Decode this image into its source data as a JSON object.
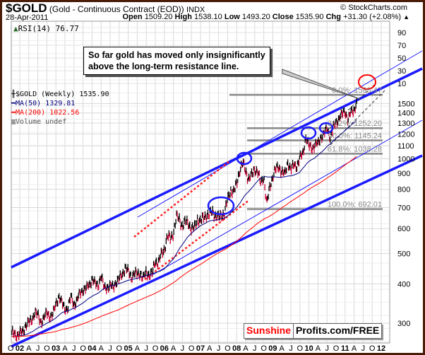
{
  "header": {
    "symbol": "$GOLD",
    "description": "(Gold - Continuous Contract (EOD))",
    "exchange": "INDX",
    "copyright": "© StockCharts.com",
    "date": "28-Apr-2011",
    "open_label": "Open",
    "open": "1509.20",
    "high_label": "High",
    "high": "1538.10",
    "low_label": "Low",
    "low": "1493.20",
    "close_label": "Close",
    "close": "1535.90",
    "chg_label": "Chg",
    "chg": "+31.30 (+2.08%)",
    "chg_arrow": "▲"
  },
  "rsi_label": "RSI(14) 76.77",
  "legend": {
    "price": "$GOLD (Weekly) 1535.90",
    "ma50": "MA(50) 1329.81",
    "ma200": "MA(200) 1022.56",
    "volume": "Volume undef"
  },
  "callout": {
    "line1": "So far gold has moved only insignificantly",
    "line2": "above the long-term resistance line."
  },
  "logo": {
    "part1": "Sunshine",
    "part2": "Profits.com/FREE"
  },
  "colors": {
    "up": "#000000",
    "down": "#cc0033",
    "ma50": "#000080",
    "ma200": "#ff0000",
    "trend": "#1a1aff",
    "fib": "#888888"
  },
  "chart_data": {
    "type": "ohlc-bar",
    "title": "$GOLD (Weekly)",
    "scale": "log",
    "ylim": [
      270,
      1700
    ],
    "y_tick_labels": [
      "300",
      "400",
      "500",
      "600",
      "700",
      "800",
      "900",
      "1000",
      "1100",
      "1200",
      "1300",
      "1400",
      "1500"
    ],
    "rsi_tick_labels": [
      "90",
      "70",
      "50",
      "30",
      "10"
    ],
    "x_tick_labels": [
      "O",
      "02",
      "A",
      "J",
      "O",
      "03",
      "A",
      "J",
      "O",
      "04",
      "A",
      "J",
      "O",
      "05",
      "A",
      "J",
      "O",
      "06",
      "A",
      "J",
      "O",
      "07",
      "A",
      "J",
      "O",
      "08",
      "A",
      "J",
      "O",
      "09",
      "A",
      "J",
      "O",
      "10",
      "A",
      "J",
      "O",
      "11",
      "A",
      "J",
      "O",
      "12"
    ],
    "monthly_start": "2001-10",
    "monthly_closes": [
      279,
      275,
      279,
      282,
      297,
      301,
      308,
      326,
      318,
      304,
      312,
      324,
      317,
      319,
      347,
      367,
      347,
      334,
      336,
      364,
      346,
      354,
      375,
      385,
      386,
      398,
      417,
      400,
      397,
      427,
      388,
      393,
      395,
      391,
      408,
      415,
      429,
      453,
      438,
      422,
      434,
      428,
      435,
      417,
      437,
      429,
      433,
      473,
      470,
      495,
      517,
      569,
      556,
      582,
      654,
      643,
      613,
      632,
      626,
      599,
      604,
      646,
      632,
      650,
      665,
      663,
      683,
      659,
      650,
      665,
      673,
      743,
      795,
      783,
      834,
      923,
      971,
      916,
      865,
      885,
      930,
      914,
      833,
      884,
      718,
      814,
      884,
      928,
      942,
      916,
      891,
      979,
      927,
      955,
      955,
      1008,
      1040,
      1182,
      1096,
      1081,
      1118,
      1113,
      1180,
      1207,
      1244,
      1181,
      1248,
      1307,
      1357,
      1386,
      1421,
      1333,
      1411,
      1439,
      1536
    ],
    "series": [
      {
        "name": "MA(50)",
        "last": 1329.81
      },
      {
        "name": "MA(200)",
        "last": 1022.56
      }
    ],
    "fibonacci": [
      {
        "label": "0.0%: 1598.47",
        "value": 1598.47
      },
      {
        "label": "38.2%: 1252.20",
        "value": 1252.2
      },
      {
        "label": "50.0%: 1145.24",
        "value": 1145.24
      },
      {
        "label": "61.8%: 1038.28",
        "value": 1038.28
      },
      {
        "label": "100.0%: 692.01",
        "value": 692.01
      }
    ]
  }
}
